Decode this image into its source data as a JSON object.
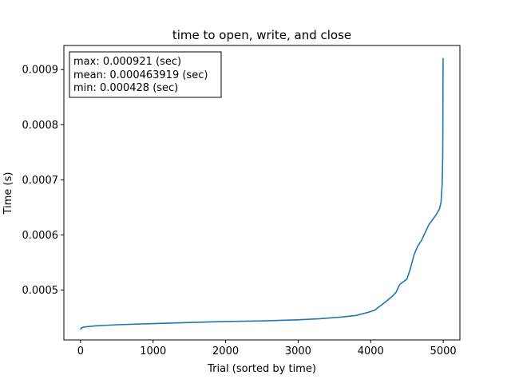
{
  "chart_data": {
    "type": "line",
    "title": "time to open, write, and close",
    "xlabel": "Trial (sorted by time)",
    "ylabel": "Time (s)",
    "xlim": [
      -230,
      5230
    ],
    "ylim": [
      0.0004095,
      0.0009437
    ],
    "x_ticks": [
      {
        "value": 0,
        "label": "0"
      },
      {
        "value": 1000,
        "label": "1000"
      },
      {
        "value": 2000,
        "label": "2000"
      },
      {
        "value": 3000,
        "label": "3000"
      },
      {
        "value": 4000,
        "label": "4000"
      },
      {
        "value": 5000,
        "label": "5000"
      }
    ],
    "y_ticks": [
      {
        "value": 0.0005,
        "label": "0.0005"
      },
      {
        "value": 0.0006,
        "label": "0.0006"
      },
      {
        "value": 0.0007,
        "label": "0.0007"
      },
      {
        "value": 0.0008,
        "label": "0.0008"
      },
      {
        "value": 0.0009,
        "label": "0.0009"
      }
    ],
    "grid": false,
    "legend": "none",
    "series": [
      {
        "color": "#1f77b4",
        "x": [
          0,
          10,
          50,
          200,
          500,
          1000,
          1500,
          2000,
          2500,
          3000,
          3300,
          3600,
          3800,
          3950,
          4050,
          4100,
          4200,
          4300,
          4350,
          4400,
          4450,
          4500,
          4550,
          4600,
          4650,
          4700,
          4800,
          4900,
          4950,
          4970,
          4985,
          4990,
          4993,
          4995,
          4997,
          4999
        ],
        "y": [
          0.000428,
          0.000431,
          0.000433,
          0.000435,
          0.000437,
          0.000439,
          0.000441,
          0.000443,
          0.000444,
          0.000446,
          0.000448,
          0.000451,
          0.000454,
          0.000459,
          0.000463,
          0.000468,
          0.000478,
          0.000489,
          0.000496,
          0.00051,
          0.000515,
          0.00052,
          0.00054,
          0.000565,
          0.00058,
          0.00059,
          0.000618,
          0.000636,
          0.000648,
          0.00066,
          0.00069,
          0.00072,
          0.000745,
          0.0008,
          0.00087,
          0.000921
        ]
      }
    ],
    "annotation": {
      "lines": [
        "max: 0.000921 (sec)",
        "mean: 0.000463919 (sec)",
        "min: 0.000428 (sec)"
      ],
      "position": "top-left"
    }
  }
}
